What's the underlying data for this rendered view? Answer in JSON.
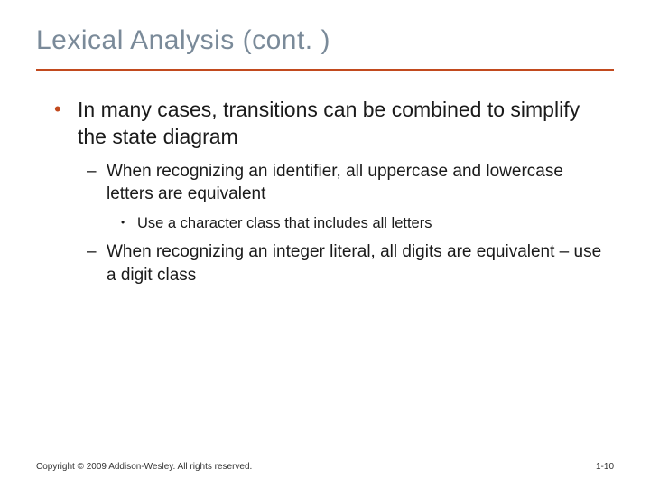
{
  "title": "Lexical Analysis (cont. )",
  "colors": {
    "title": "#7a8a99",
    "rule": "#c24a1e",
    "bullet_accent": "#c24a1e",
    "text": "#1a1a1a",
    "background": "#ffffff"
  },
  "typography": {
    "title_fontsize": 30,
    "lvl1_fontsize": 23,
    "lvl2_fontsize": 19,
    "lvl3_fontsize": 16.5,
    "footer_fontsize": 10
  },
  "bullets": {
    "lvl1": [
      {
        "text": "In many cases, transitions can be combined to simplify the state diagram",
        "lvl2": [
          {
            "text": "When recognizing an identifier, all uppercase and lowercase letters are equivalent",
            "lvl3": [
              {
                "text": "Use a character class that includes all letters"
              }
            ]
          },
          {
            "text": "When recognizing an integer literal, all digits are equivalent – use a digit class"
          }
        ]
      }
    ]
  },
  "footer": {
    "left": "Copyright © 2009 Addison-Wesley. All rights reserved.",
    "right": "1-10"
  }
}
